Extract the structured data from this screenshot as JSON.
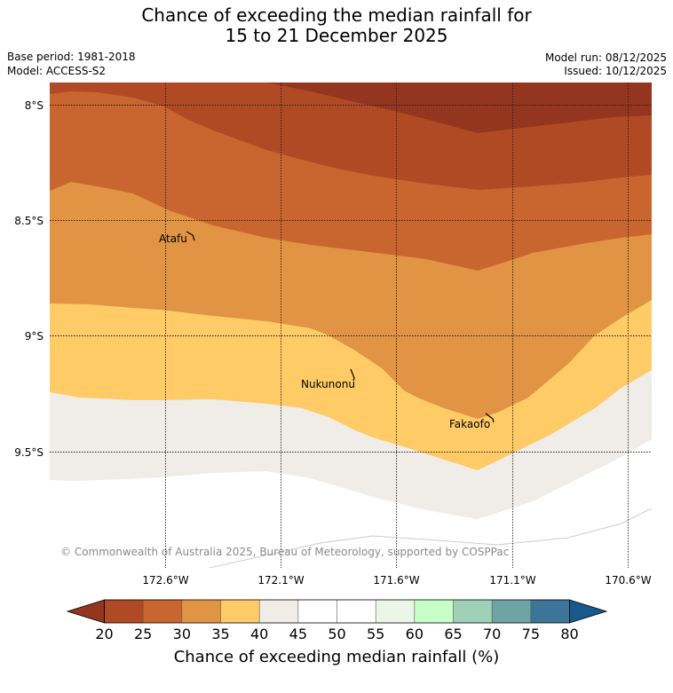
{
  "header": {
    "title_line1": "Chance of exceeding the median rainfall for",
    "title_line2": "15 to 21 December 2025",
    "base_period": "Base period: 1981-2018",
    "model": "Model: ACCESS-S2",
    "model_run": "Model run: 08/12/2025",
    "issued": "Issued: 10/12/2025"
  },
  "map": {
    "lat_labels": [
      "8°S",
      "8.5°S",
      "9°S",
      "9.5°S"
    ],
    "lon_labels": [
      "172.6°W",
      "172.1°W",
      "171.6°W",
      "171.1°W",
      "170.6°W"
    ],
    "places": [
      "Atafu",
      "Nukunonu",
      "Fakaofo"
    ],
    "copyright": "© Commonwealth of Australia 2025, Bureau of Meteorology, supported by COSPPac"
  },
  "colorbar": {
    "ticks": [
      "20",
      "25",
      "30",
      "35",
      "40",
      "45",
      "50",
      "55",
      "60",
      "65",
      "70",
      "75",
      "80"
    ],
    "colors": [
      "#b04a24",
      "#c9652f",
      "#e09444",
      "#fecb66",
      "#f0ede8",
      "#ffffff",
      "#ffffff",
      "#ebf6e9",
      "#c7fec7",
      "#9fd0b8",
      "#6ea4a6",
      "#3c7597"
    ],
    "below_color": "#93351f",
    "above_color": "#155a8a",
    "label": "Chance of exceeding median rainfall (%)"
  }
}
